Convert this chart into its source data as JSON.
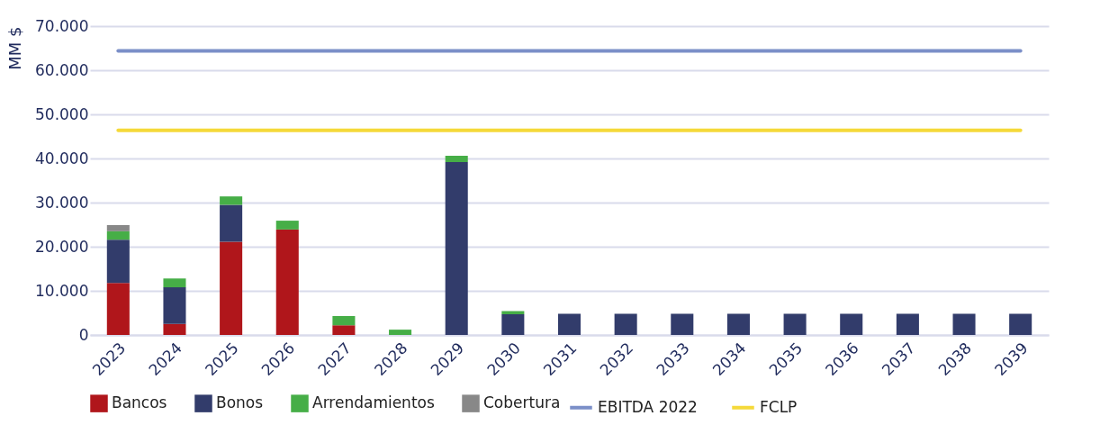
{
  "chart_data": {
    "type": "bar",
    "stacked": true,
    "ylabel": "MM $",
    "categories": [
      "2023",
      "2024",
      "2025",
      "2026",
      "2027",
      "2028",
      "2029",
      "2030",
      "2031",
      "2032",
      "2033",
      "2034",
      "2035",
      "2036",
      "2037",
      "2038",
      "2039"
    ],
    "series": [
      {
        "name": "Bancos",
        "color": "#b0161b",
        "values": [
          11800,
          2500,
          21100,
          23900,
          2200,
          null,
          null,
          null,
          null,
          null,
          null,
          null,
          null,
          null,
          null,
          null,
          null
        ]
      },
      {
        "name": "Bonos",
        "color": "#323c6b",
        "values": [
          9800,
          8300,
          8400,
          null,
          null,
          null,
          39200,
          4700,
          4800,
          4800,
          4800,
          4800,
          4800,
          4800,
          4800,
          4800,
          4800
        ]
      },
      {
        "name": "Arrendamientos",
        "color": "#46ae47",
        "values": [
          1900,
          2000,
          1900,
          2000,
          2100,
          1200,
          1400,
          700,
          null,
          null,
          null,
          null,
          null,
          null,
          null,
          null,
          null
        ]
      },
      {
        "name": "Cobertura",
        "color": "#888888",
        "values": [
          1400,
          null,
          null,
          null,
          null,
          null,
          null,
          null,
          null,
          null,
          null,
          null,
          null,
          null,
          null,
          null,
          null
        ]
      },
      {
        "name": "EBITDA 2022",
        "type": "line",
        "color": "#7b8fc8",
        "values": [
          64400,
          64400,
          64400,
          64400,
          64400,
          64400,
          64400,
          64400,
          64400,
          64400,
          64400,
          64400,
          64400,
          64400,
          64400,
          64400,
          64400
        ]
      },
      {
        "name": "FCLP",
        "type": "line",
        "color": "#f5d93a",
        "values": [
          46400,
          46400,
          46400,
          46400,
          46400,
          46400,
          46400,
          46400,
          46400,
          46400,
          46400,
          46400,
          46400,
          46400,
          46400,
          46400,
          46400
        ]
      }
    ],
    "ylim": [
      0,
      70000
    ],
    "yticks": [
      {
        "value": 0,
        "label": "0"
      },
      {
        "value": 10000,
        "label": "10.000"
      },
      {
        "value": 20000,
        "label": "20.000"
      },
      {
        "value": 30000,
        "label": "30.000"
      },
      {
        "value": 40000,
        "label": "40.000"
      },
      {
        "value": 50000,
        "label": "50.000"
      },
      {
        "value": 60000,
        "label": "60.000"
      },
      {
        "value": 70000,
        "label": "70.000"
      }
    ],
    "grid": "y",
    "legend": "bottom"
  }
}
